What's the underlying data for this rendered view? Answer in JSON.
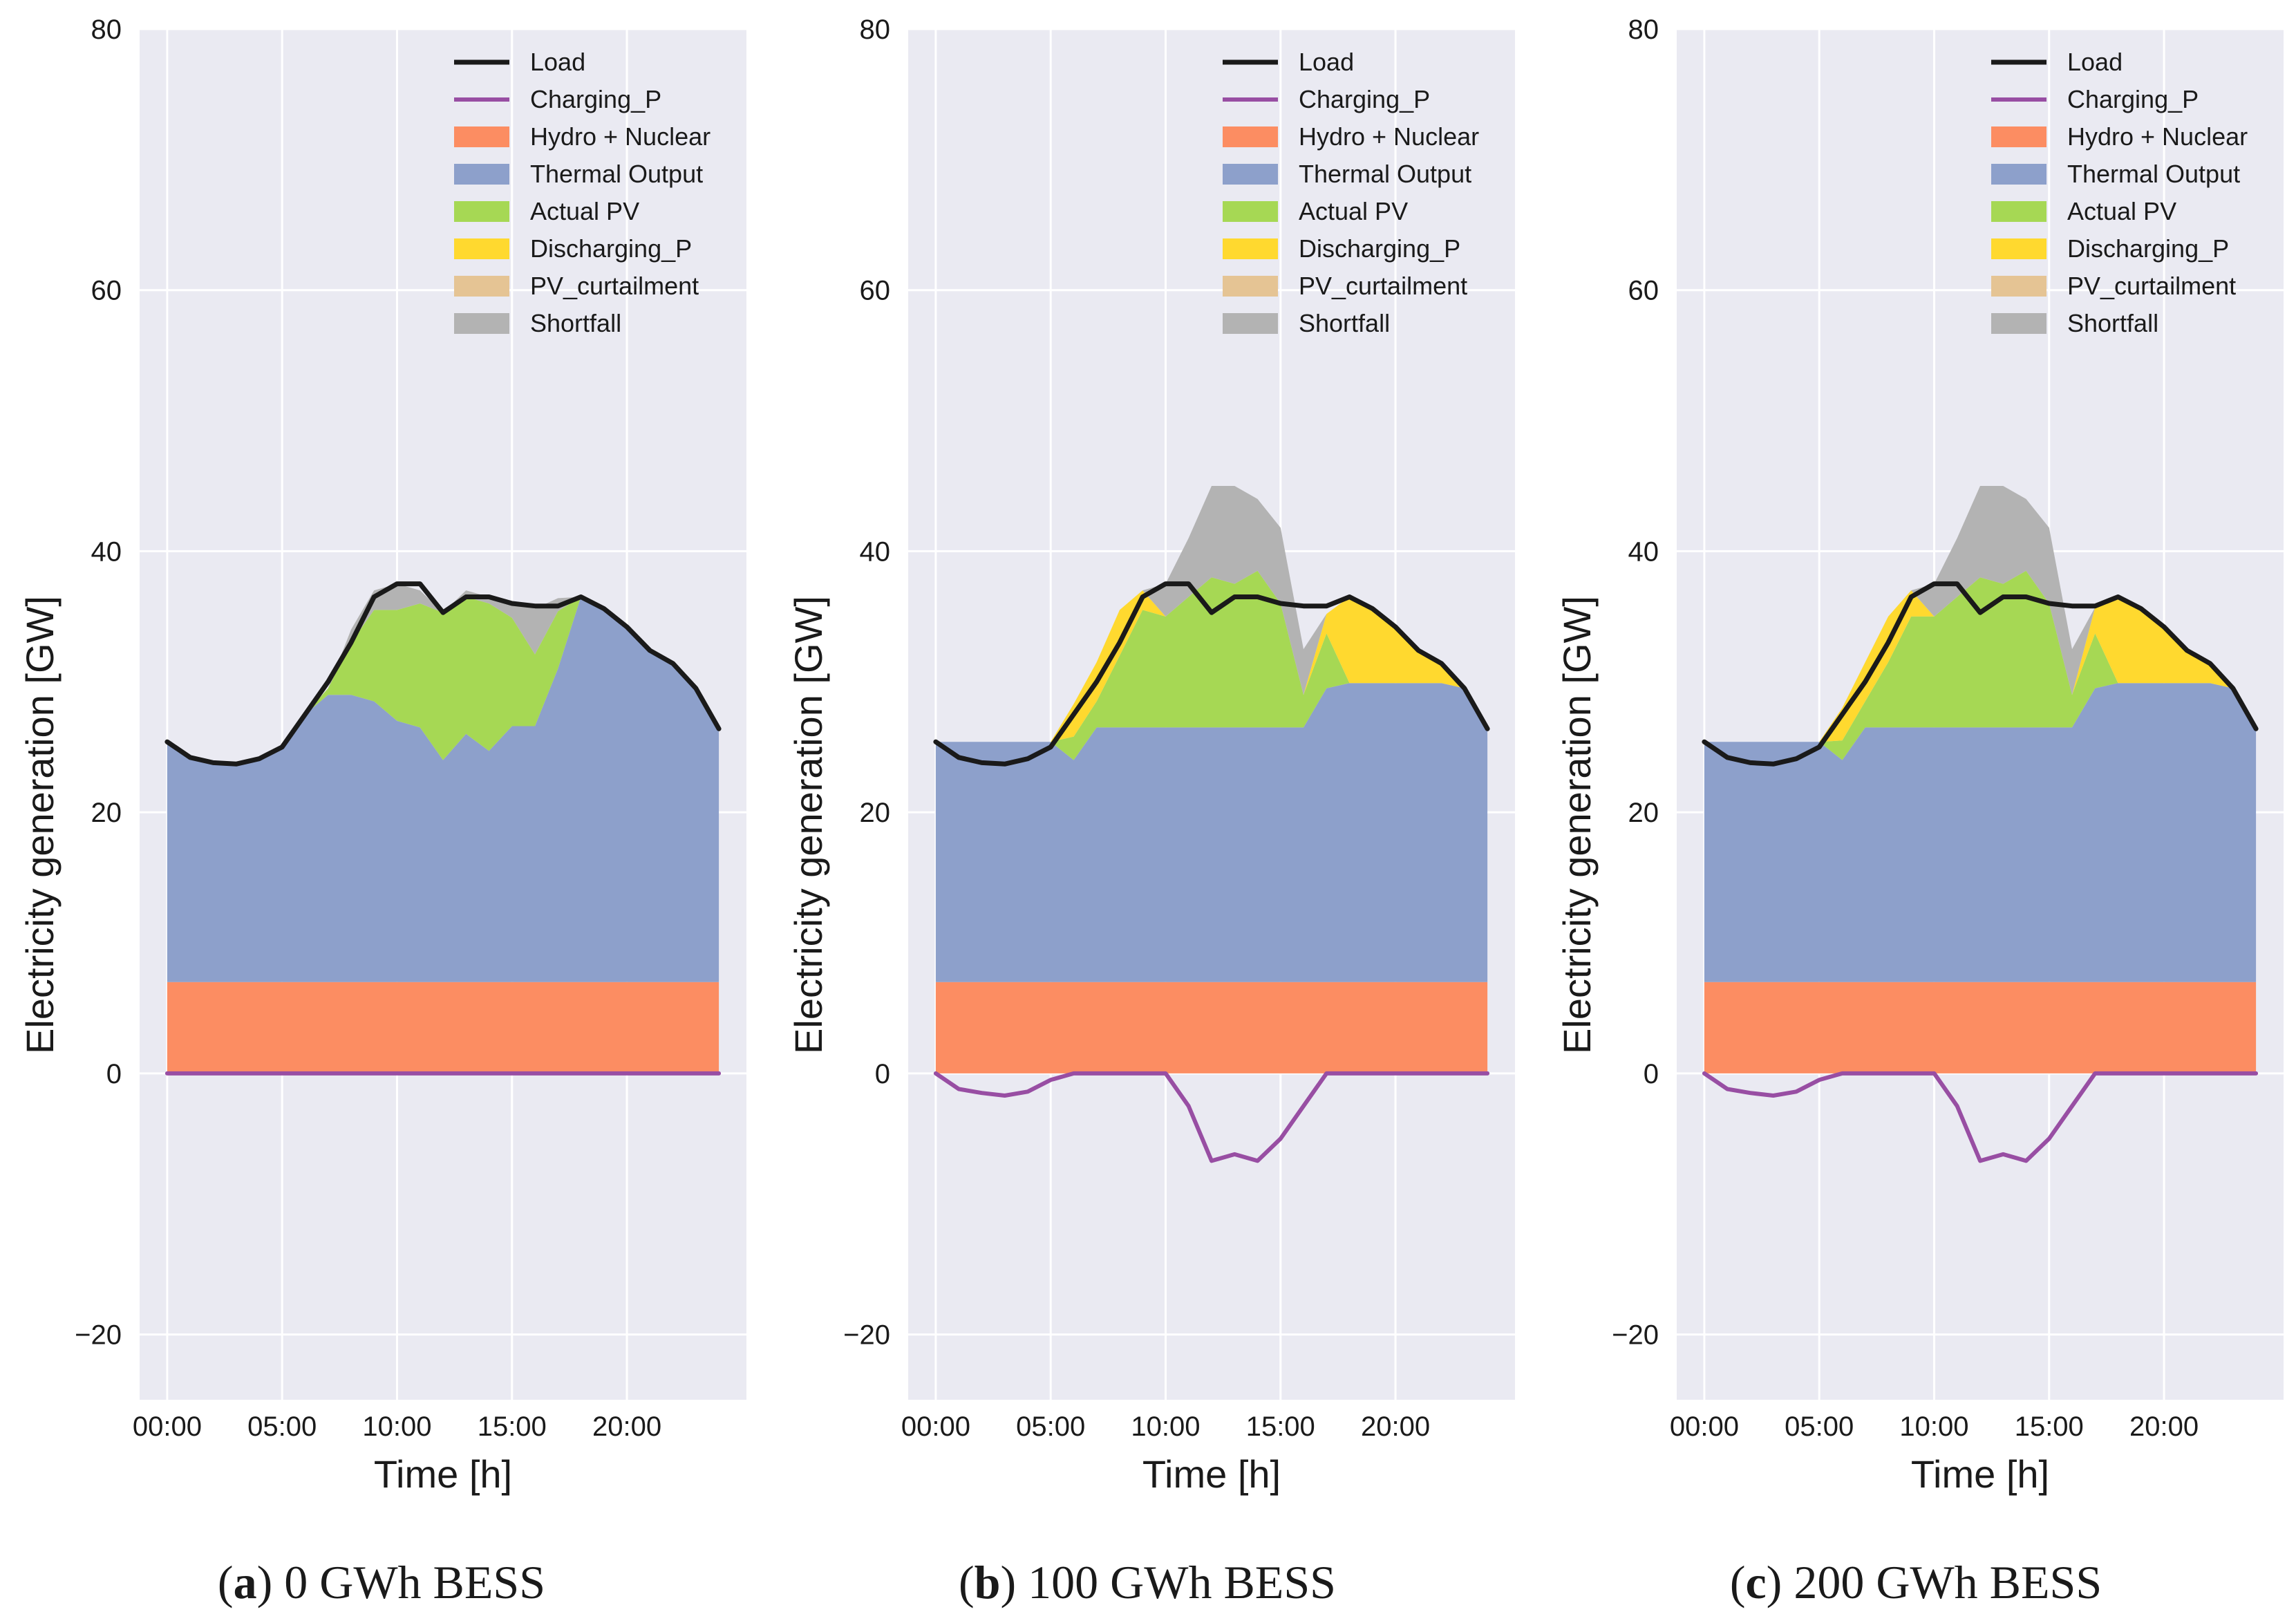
{
  "chart_data": [
    {
      "type": "area",
      "caption": {
        "letter": "a",
        "text": "0 GWh BESS"
      },
      "xlabel": "Time [h]",
      "ylabel": "Electricity generation [GW]",
      "xlim": [
        -1.2,
        25.2
      ],
      "ylim": [
        -25,
        80
      ],
      "xticks": [
        0,
        5,
        10,
        15,
        20
      ],
      "xtick_labels": [
        "00:00",
        "05:00",
        "10:00",
        "15:00",
        "20:00"
      ],
      "yticks": [
        -20,
        0,
        20,
        40,
        60,
        80
      ],
      "ytick_labels": [
        "−20",
        "0",
        "20",
        "40",
        "60",
        "80"
      ],
      "grid": true,
      "legend_position": "top-right",
      "legend": [
        "Load",
        "Charging_P",
        "Hydro + Nuclear",
        "Thermal Output",
        "Actual PV",
        "Discharging_P",
        "PV_curtailment",
        "Shortfall"
      ],
      "x": [
        0,
        1,
        2,
        3,
        4,
        5,
        6,
        7,
        8,
        9,
        10,
        11,
        12,
        13,
        14,
        15,
        16,
        17,
        18,
        19,
        20,
        21,
        22,
        23,
        24
      ],
      "series": [
        {
          "name": "Hydro + Nuclear",
          "kind": "area",
          "values": [
            7,
            7,
            7,
            7,
            7,
            7,
            7,
            7,
            7,
            7,
            7,
            7,
            7,
            7,
            7,
            7,
            7,
            7,
            7,
            7,
            7,
            7,
            7,
            7,
            7
          ]
        },
        {
          "name": "Thermal Output",
          "kind": "area",
          "values": [
            18.4,
            17.2,
            16.8,
            16.7,
            17.1,
            18,
            20.5,
            22,
            22,
            21.5,
            20,
            19.5,
            17,
            19,
            17.7,
            19.6,
            19.6,
            24,
            29.5,
            28.6,
            27.2,
            25.4,
            24.4,
            22.5,
            19.4
          ]
        },
        {
          "name": "Actual PV",
          "kind": "area",
          "values": [
            0,
            0,
            0,
            0,
            0,
            0,
            0,
            0.5,
            4,
            7,
            8.5,
            9.5,
            11.3,
            10.5,
            11.3,
            8.3,
            5.5,
            4.4,
            0,
            0,
            0,
            0,
            0,
            0,
            0
          ]
        },
        {
          "name": "Discharging_P",
          "kind": "area",
          "values": [
            0,
            0,
            0,
            0,
            0,
            0,
            0,
            0,
            0,
            0,
            0,
            0,
            0,
            0,
            0,
            0,
            0,
            0,
            0,
            0,
            0,
            0,
            0,
            0,
            0
          ]
        },
        {
          "name": "PV_curtailment",
          "kind": "area",
          "values": [
            0,
            0,
            0,
            0,
            0,
            0,
            0,
            0,
            0,
            0,
            0,
            0,
            0,
            0,
            0,
            0,
            0,
            0,
            0,
            0,
            0,
            0,
            0,
            0,
            0
          ]
        },
        {
          "name": "Shortfall",
          "kind": "area",
          "values": [
            0,
            0,
            0,
            0,
            0,
            0,
            0,
            0,
            1,
            1.5,
            2,
            1,
            0,
            0.5,
            0.5,
            1.2,
            3.5,
            1,
            0,
            0,
            0,
            0,
            0,
            0,
            0
          ]
        },
        {
          "name": "Load",
          "kind": "line",
          "values": [
            25.4,
            24.2,
            23.8,
            23.7,
            24.1,
            25,
            27.5,
            30,
            33,
            36.5,
            37.5,
            37.5,
            35.3,
            36.5,
            36.5,
            36,
            35.8,
            35.8,
            36.5,
            35.6,
            34.2,
            32.4,
            31.4,
            29.5,
            26.4
          ]
        },
        {
          "name": "Charging_P",
          "kind": "line",
          "values": [
            0,
            0,
            0,
            0,
            0,
            0,
            0,
            0,
            0,
            0,
            0,
            0,
            0,
            0,
            0,
            0,
            0,
            0,
            0,
            0,
            0,
            0,
            0,
            0,
            0
          ]
        }
      ]
    },
    {
      "type": "area",
      "caption": {
        "letter": "b",
        "text": "100 GWh BESS"
      },
      "xlabel": "Time [h]",
      "ylabel": "Electricity generation [GW]",
      "xlim": [
        -1.2,
        25.2
      ],
      "ylim": [
        -25,
        80
      ],
      "xticks": [
        0,
        5,
        10,
        15,
        20
      ],
      "xtick_labels": [
        "00:00",
        "05:00",
        "10:00",
        "15:00",
        "20:00"
      ],
      "yticks": [
        -20,
        0,
        20,
        40,
        60,
        80
      ],
      "ytick_labels": [
        "−20",
        "0",
        "20",
        "40",
        "60",
        "80"
      ],
      "grid": true,
      "legend_position": "top-right",
      "legend": [
        "Load",
        "Charging_P",
        "Hydro + Nuclear",
        "Thermal Output",
        "Actual PV",
        "Discharging_P",
        "PV_curtailment",
        "Shortfall"
      ],
      "x": [
        0,
        1,
        2,
        3,
        4,
        5,
        6,
        7,
        8,
        9,
        10,
        11,
        12,
        13,
        14,
        15,
        16,
        17,
        18,
        19,
        20,
        21,
        22,
        23,
        24
      ],
      "series": [
        {
          "name": "Hydro + Nuclear",
          "kind": "area",
          "values": [
            7,
            7,
            7,
            7,
            7,
            7,
            7,
            7,
            7,
            7,
            7,
            7,
            7,
            7,
            7,
            7,
            7,
            7,
            7,
            7,
            7,
            7,
            7,
            7,
            7
          ]
        },
        {
          "name": "Thermal Output",
          "kind": "area",
          "values": [
            18.4,
            18.4,
            18.4,
            18.4,
            18.4,
            18.4,
            17,
            19.5,
            19.5,
            19.5,
            19.5,
            19.5,
            19.5,
            19.5,
            19.5,
            19.5,
            19.5,
            22.5,
            22.9,
            22.9,
            22.9,
            22.9,
            22.9,
            22.5,
            19.4
          ]
        },
        {
          "name": "Actual PV",
          "kind": "area",
          "values": [
            0,
            0,
            0,
            0,
            0,
            0,
            1.8,
            2,
            5.5,
            9,
            8.5,
            10,
            11.5,
            11,
            12,
            9.5,
            2.5,
            4.2,
            0,
            0,
            0,
            0,
            0,
            0,
            0
          ]
        },
        {
          "name": "Discharging_P",
          "kind": "area",
          "values": [
            0,
            0,
            0,
            0,
            0,
            0,
            2.5,
            3,
            3.5,
            1.5,
            0,
            0,
            0,
            0,
            0,
            0,
            0,
            1.5,
            6.6,
            5.7,
            4.3,
            2.5,
            1.5,
            0,
            0
          ]
        },
        {
          "name": "PV_curtailment",
          "kind": "area",
          "values": [
            0,
            0,
            0,
            0,
            0,
            0,
            0,
            0,
            0,
            0,
            0,
            0,
            0,
            0,
            0,
            0,
            0,
            0,
            0,
            0,
            0,
            0,
            0,
            0,
            0
          ]
        },
        {
          "name": "Shortfall",
          "kind": "area",
          "values": [
            0,
            0,
            0,
            0,
            0,
            0,
            0,
            0,
            0,
            0,
            2.5,
            4.5,
            7,
            7.5,
            5.5,
            5.8,
            3.5,
            0,
            0,
            0,
            0,
            0,
            0,
            0,
            0
          ]
        },
        {
          "name": "Load",
          "kind": "line",
          "values": [
            25.4,
            24.2,
            23.8,
            23.7,
            24.1,
            25,
            27.5,
            30,
            33,
            36.5,
            37.5,
            37.5,
            35.3,
            36.5,
            36.5,
            36,
            35.8,
            35.8,
            36.5,
            35.6,
            34.2,
            32.4,
            31.4,
            29.5,
            26.4
          ]
        },
        {
          "name": "Charging_P",
          "kind": "line",
          "values": [
            0,
            -1.2,
            -1.5,
            -1.7,
            -1.4,
            -0.5,
            0,
            0,
            0,
            0,
            0,
            -2.5,
            -6.7,
            -6.2,
            -6.7,
            -5,
            -2.5,
            0,
            0,
            0,
            0,
            0,
            0,
            0,
            0
          ]
        }
      ]
    },
    {
      "type": "area",
      "caption": {
        "letter": "c",
        "text": "200 GWh BESS"
      },
      "xlabel": "Time [h]",
      "ylabel": "Electricity generation [GW]",
      "xlim": [
        -1.2,
        25.2
      ],
      "ylim": [
        -25,
        80
      ],
      "xticks": [
        0,
        5,
        10,
        15,
        20
      ],
      "xtick_labels": [
        "00:00",
        "05:00",
        "10:00",
        "15:00",
        "20:00"
      ],
      "yticks": [
        -20,
        0,
        20,
        40,
        60,
        80
      ],
      "ytick_labels": [
        "−20",
        "0",
        "20",
        "40",
        "60",
        "80"
      ],
      "grid": true,
      "legend_position": "top-right",
      "legend": [
        "Load",
        "Charging_P",
        "Hydro + Nuclear",
        "Thermal Output",
        "Actual PV",
        "Discharging_P",
        "PV_curtailment",
        "Shortfall"
      ],
      "x": [
        0,
        1,
        2,
        3,
        4,
        5,
        6,
        7,
        8,
        9,
        10,
        11,
        12,
        13,
        14,
        15,
        16,
        17,
        18,
        19,
        20,
        21,
        22,
        23,
        24
      ],
      "series": [
        {
          "name": "Hydro + Nuclear",
          "kind": "area",
          "values": [
            7,
            7,
            7,
            7,
            7,
            7,
            7,
            7,
            7,
            7,
            7,
            7,
            7,
            7,
            7,
            7,
            7,
            7,
            7,
            7,
            7,
            7,
            7,
            7,
            7
          ]
        },
        {
          "name": "Thermal Output",
          "kind": "area",
          "values": [
            18.4,
            18.4,
            18.4,
            18.4,
            18.4,
            18.4,
            17,
            19.5,
            19.5,
            19.5,
            19.5,
            19.5,
            19.5,
            19.5,
            19.5,
            19.5,
            19.5,
            22.5,
            22.9,
            22.9,
            22.9,
            22.9,
            22.9,
            22.5,
            19.4
          ]
        },
        {
          "name": "Actual PV",
          "kind": "area",
          "values": [
            0,
            0,
            0,
            0,
            0,
            0,
            1.5,
            2,
            5,
            8.5,
            8.5,
            10,
            11.5,
            11,
            12,
            9.5,
            2.5,
            4.2,
            0,
            0,
            0,
            0,
            0,
            0,
            0
          ]
        },
        {
          "name": "Discharging_P",
          "kind": "area",
          "values": [
            0,
            0,
            0,
            0,
            0,
            0,
            2.5,
            3,
            3.5,
            2,
            0,
            0,
            0,
            0,
            0,
            0,
            0,
            2,
            6.6,
            5.7,
            4.3,
            2.5,
            1.5,
            0,
            0
          ]
        },
        {
          "name": "PV_curtailment",
          "kind": "area",
          "values": [
            0,
            0,
            0,
            0,
            0,
            0,
            0,
            0,
            0,
            0,
            0,
            0,
            0,
            0,
            0,
            0,
            0,
            0,
            0,
            0,
            0,
            0,
            0,
            0,
            0
          ]
        },
        {
          "name": "Shortfall",
          "kind": "area",
          "values": [
            0,
            0,
            0,
            0,
            0,
            0,
            0,
            0,
            0,
            0,
            2.5,
            4.5,
            7,
            7.5,
            5.5,
            5.8,
            3.5,
            0,
            0,
            0,
            0,
            0,
            0,
            0,
            0
          ]
        },
        {
          "name": "Load",
          "kind": "line",
          "values": [
            25.4,
            24.2,
            23.8,
            23.7,
            24.1,
            25,
            27.5,
            30,
            33,
            36.5,
            37.5,
            37.5,
            35.3,
            36.5,
            36.5,
            36,
            35.8,
            35.8,
            36.5,
            35.6,
            34.2,
            32.4,
            31.4,
            29.5,
            26.4
          ]
        },
        {
          "name": "Charging_P",
          "kind": "line",
          "values": [
            0,
            -1.2,
            -1.5,
            -1.7,
            -1.4,
            -0.5,
            0,
            0,
            0,
            0,
            0,
            -2.5,
            -6.7,
            -6.2,
            -6.7,
            -5,
            -2.5,
            0,
            0,
            0,
            0,
            0,
            0,
            0,
            0
          ]
        }
      ]
    }
  ],
  "colors": {
    "panel_bg": "#eaeaf2",
    "grid": "#ffffff",
    "Load": "#1a1a1a",
    "Charging_P": "#984ea3",
    "Hydro + Nuclear": "#fc8d62",
    "Thermal Output": "#8da0cb",
    "Actual PV": "#a6d854",
    "Discharging_P": "#ffd92f",
    "PV_curtailment": "#e5c494",
    "Shortfall": "#b3b3b3"
  }
}
